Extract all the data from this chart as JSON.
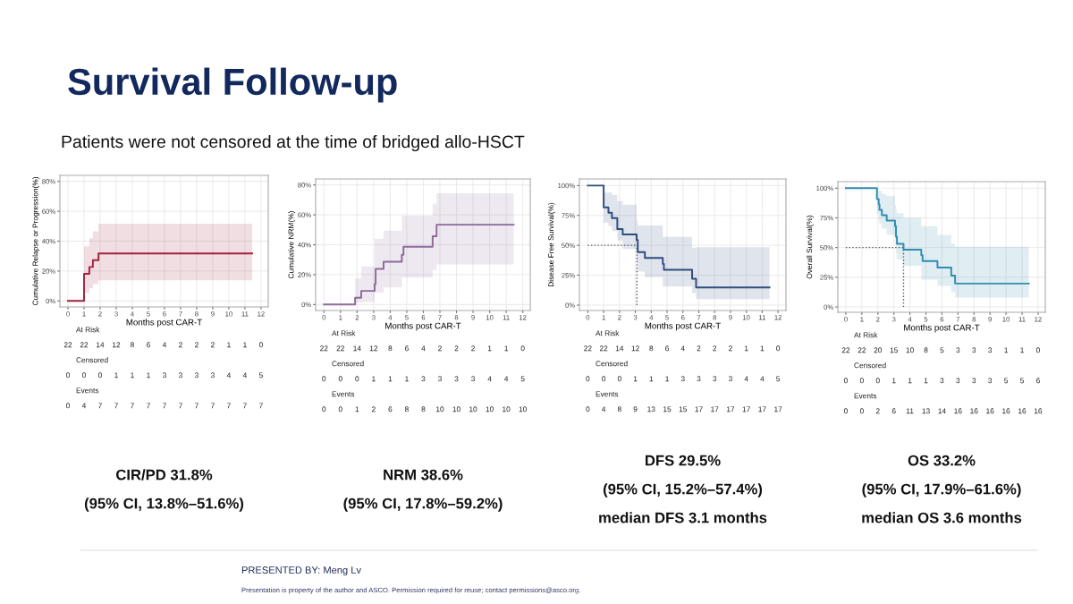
{
  "chart_data": [
    {
      "type": "step",
      "ylabel": "Cumulative Relapse or Progression(%)",
      "xlabel": "Months post CAR-T",
      "series": [
        {
          "color": "#a3213f",
          "x": [
            0,
            1.0,
            1.33,
            1.55,
            1.9,
            11.45
          ],
          "values": [
            0,
            18.2,
            22.7,
            27.3,
            31.8,
            31.8
          ],
          "lower": [
            null,
            5.4,
            8.5,
            11.3,
            13.8,
            13.8
          ],
          "upper": [
            null,
            36.5,
            42,
            46.6,
            51.6,
            51.6
          ]
        }
      ],
      "xlim": [
        -0.5,
        12.45
      ],
      "ylim": [
        -4,
        84
      ],
      "xticks": [
        0,
        1,
        2,
        3,
        4,
        5,
        6,
        7,
        8,
        9,
        10,
        11,
        12
      ],
      "yticks": [
        {
          "value": 0,
          "label": "0%"
        },
        {
          "value": 20,
          "label": "20%"
        },
        {
          "value": 40,
          "label": "40%"
        },
        {
          "value": 60,
          "label": "60%"
        },
        {
          "value": 80,
          "label": "80%"
        }
      ],
      "grid": true,
      "legend": false,
      "annotations": [
        "At Risk",
        "22 22 14 12 8 6 4 2 2 2 1 1 0",
        "Censored",
        "0 0 0 1 1 1 3 3 3 3 4 4 5",
        "Events",
        "0 4 7 7 7 7 7 7 7 7 7 7 7",
        "CIR/PD 31.8%",
        "(95% CI, 13.8%–51.6%)"
      ]
    },
    {
      "type": "step",
      "ylabel": "Cumulative NRM(%)",
      "xlabel": "Months post CAR-T",
      "series": [
        {
          "color": "#8e6a99",
          "x": [
            0,
            1.88,
            2.25,
            3.06,
            3.12,
            3.6,
            4.7,
            4.8,
            6.56,
            6.8,
            11.45
          ],
          "values": [
            0,
            4.5,
            9.1,
            13.6,
            23.8,
            28.6,
            33.3,
            38.6,
            45.7,
            53.4,
            53.4
          ],
          "lower": [
            null,
            1.4,
            1.5,
            8,
            8,
            11.4,
            18,
            18,
            23,
            26.8,
            26.8
          ],
          "upper": [
            null,
            17.4,
            25.5,
            44,
            44,
            49.4,
            59.4,
            59.4,
            67.4,
            74.4,
            74.4
          ]
        }
      ],
      "xlim": [
        -0.5,
        12.45
      ],
      "ylim": [
        -4,
        84
      ],
      "xticks": [
        0,
        1,
        2,
        3,
        4,
        5,
        6,
        7,
        8,
        9,
        10,
        11,
        12
      ],
      "yticks": [
        {
          "value": 0,
          "label": "0%"
        },
        {
          "value": 20,
          "label": "20%"
        },
        {
          "value": 40,
          "label": "40%"
        },
        {
          "value": 60,
          "label": "60%"
        },
        {
          "value": 80,
          "label": "80%"
        }
      ],
      "grid": true,
      "legend": false,
      "annotations": [
        "At Risk",
        "22 22 14 12 8 6 4 2 2 2 1 1 0",
        "Censored",
        "0 0 0 1 1 1 3 3 3 3 4 4 5",
        "Events",
        "0 0 1 2 6 8 8 10 10 10 10 10 10",
        "NRM 38.6%",
        "(95% CI, 17.8%–59.2%)"
      ]
    },
    {
      "type": "step",
      "ylabel": "Disease Free Survival(%)",
      "xlabel": "Months post CAR-T",
      "series": [
        {
          "color": "#2e4c7e",
          "x": [
            0,
            1.0,
            1.3,
            1.52,
            1.86,
            2.2,
            3.08,
            3.15,
            3.6,
            4.73,
            4.8,
            6.58,
            6.83,
            11.46
          ],
          "values": [
            100,
            81.8,
            77.3,
            72.7,
            63.6,
            59.1,
            54.5,
            44.3,
            39.4,
            34.5,
            29.5,
            22,
            14.8,
            14.8
          ],
          "lower": [
            null,
            69,
            66,
            62,
            54,
            47,
            36,
            28,
            23.4,
            15.5,
            15.5,
            10,
            5,
            5
          ],
          "upper": [
            null,
            94,
            94,
            92,
            87,
            84,
            71,
            66.6,
            66.6,
            57,
            57,
            48,
            48.5,
            48.5
          ]
        }
      ],
      "xlim": [
        -0.53,
        12.5
      ],
      "ylim": [
        -4.5,
        105.5
      ],
      "xticks": [
        0,
        1,
        2,
        3,
        4,
        5,
        6,
        7,
        8,
        9,
        10,
        11,
        12
      ],
      "yticks": [
        {
          "value": 0,
          "label": "0%"
        },
        {
          "value": 25,
          "label": "25%"
        },
        {
          "value": 50,
          "label": "50%"
        },
        {
          "value": 75,
          "label": "75%"
        },
        {
          "value": 100,
          "label": "100%"
        }
      ],
      "grid": true,
      "legend": false,
      "ref_lines": [
        {
          "axis": "y",
          "value": 50,
          "color": "#555555",
          "line_style": "dotted"
        },
        {
          "axis": "x",
          "value": 3.1,
          "color": "#555555",
          "line_style": "dotted"
        }
      ],
      "annotations": [
        "At Risk",
        "22 22 14 12 8 6 4 2 2 2 1 1 0",
        "Censored",
        "0 0 0 1 1 1 3 3 3 3 4 4 5",
        "Events",
        "0 4 8 9 13 15 15 17 17 17 17 17 17",
        "DFS 29.5%",
        "(95% CI, 15.2%–57.4%)",
        "median DFS 3.1 months"
      ]
    },
    {
      "type": "step",
      "ylabel": "Overall Survival(%)",
      "xlabel": "Months post CAR-T",
      "series": [
        {
          "color": "#2f8db0",
          "x": [
            0,
            1.94,
            2.05,
            2.1,
            2.25,
            2.55,
            3.07,
            3.13,
            3.19,
            3.6,
            4.71,
            4.79,
            5.72,
            6.58,
            6.82,
            11.42
          ],
          "values": [
            100,
            90.9,
            86.4,
            81.8,
            77.3,
            72.7,
            68.2,
            59.1,
            53.2,
            48.3,
            43.6,
            38.6,
            33.1,
            26.4,
            19.7,
            19.7
          ],
          "lower": [
            null,
            79,
            72,
            70,
            66,
            60.7,
            52,
            45,
            40,
            34.6,
            23,
            23,
            17.7,
            12.5,
            8,
            8
          ],
          "upper": [
            null,
            100,
            98,
            98,
            95,
            93.5,
            86,
            82,
            79,
            75,
            68,
            68,
            60.7,
            53.2,
            50.7,
            50.7
          ]
        }
      ],
      "xlim": [
        -0.5,
        12.45
      ],
      "ylim": [
        -4.5,
        105.5
      ],
      "xticks": [
        0,
        1,
        2,
        3,
        4,
        5,
        6,
        7,
        8,
        9,
        10,
        11,
        12
      ],
      "yticks": [
        {
          "value": 0,
          "label": "0%"
        },
        {
          "value": 25,
          "label": "25%"
        },
        {
          "value": 50,
          "label": "50%"
        },
        {
          "value": 75,
          "label": "75%"
        },
        {
          "value": 100,
          "label": "100%"
        }
      ],
      "grid": true,
      "legend": false,
      "ref_lines": [
        {
          "axis": "y",
          "value": 50,
          "color": "#555555",
          "line_style": "dotted"
        },
        {
          "axis": "x",
          "value": 3.6,
          "color": "#555555",
          "line_style": "dotted"
        }
      ],
      "annotations": [
        "At Risk",
        "22 22 20 15 10 8 5 3 3 3 1 1 0",
        "Censored",
        "0 0 0 1 1 1 3 3 3 3 5 5 6",
        "Events",
        "0 0 2 6 11 13 14 16 16 16 16 16 16",
        "OS 33.2%",
        "(95% CI, 17.9%–61.6%)",
        "median OS 3.6 months"
      ]
    },
    {
      "type": "other",
      "title": "Survival Follow-up",
      "subtitle": "Patients were not censored at the time of bridged allo-HSCT",
      "annotations": [
        "PRESENTED BY: Meng Lv",
        "Presentation is property of the author and ASCO. Permission required for reuse; contact permissions@asco.org."
      ]
    }
  ]
}
